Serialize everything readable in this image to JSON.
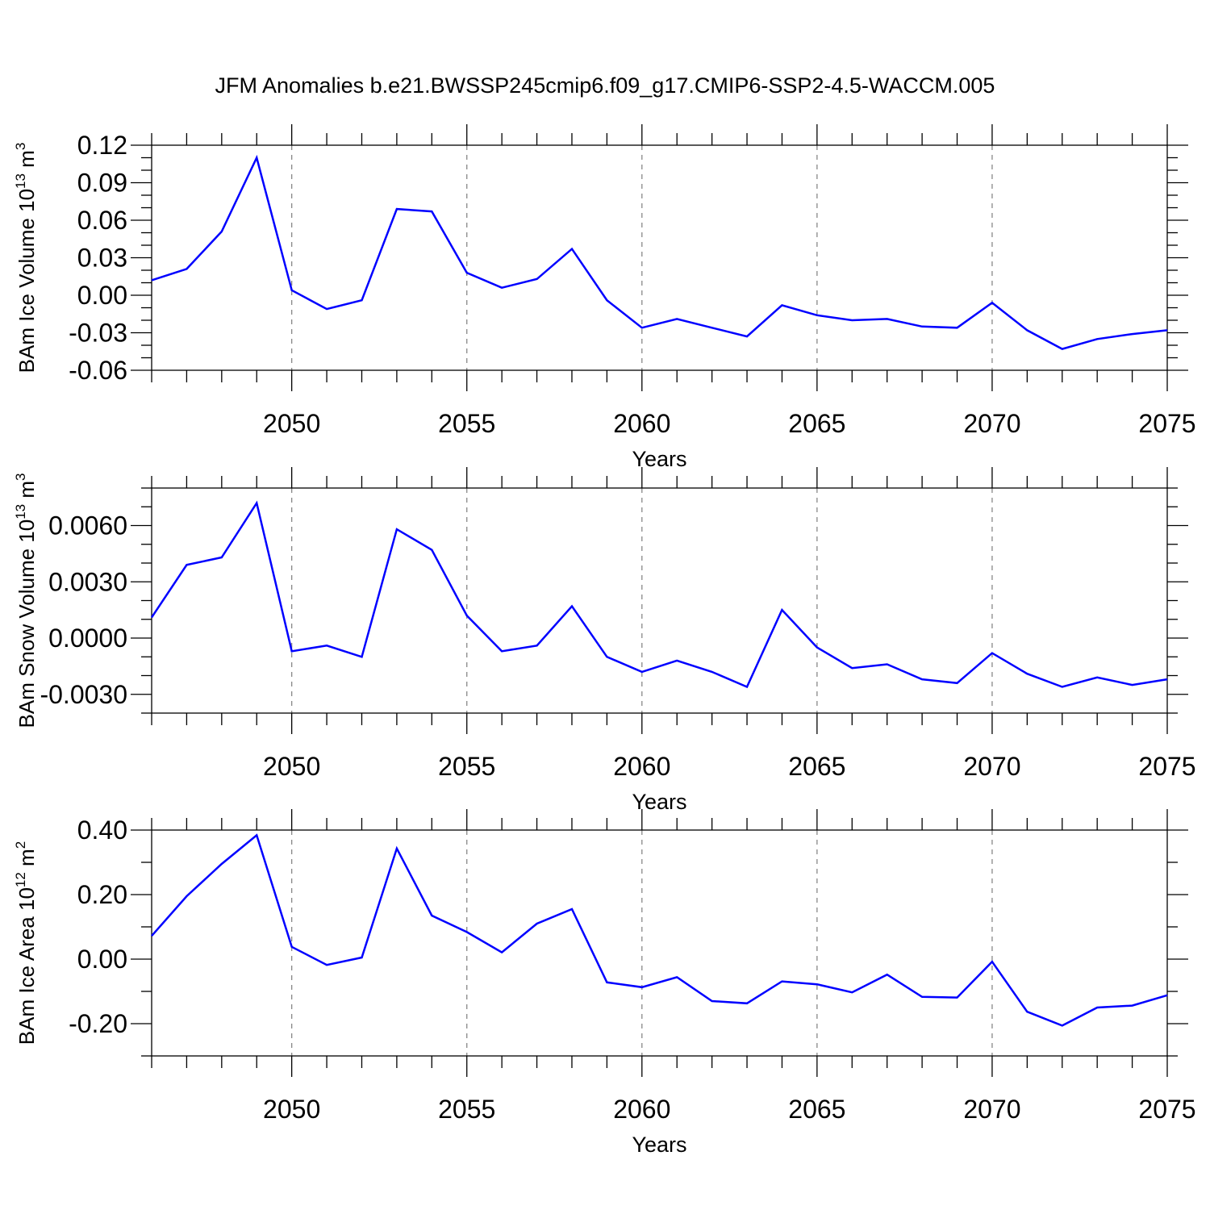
{
  "title": "JFM Anomalies b.e21.BWSSP245cmip6.f09_g17.CMIP6-SSP2-4.5-WACCM.005",
  "chart_data": [
    {
      "type": "line",
      "ylabel": {
        "text": "BAm Ice Volume 10",
        "sup": "13",
        "unit": " m",
        "unit_sup": "3"
      },
      "xlabel": "Years",
      "xlim": [
        2046,
        2075
      ],
      "ylim": [
        -0.06,
        0.12
      ],
      "yticks": [
        "0.12",
        "0.09",
        "0.06",
        "0.03",
        "0.00",
        "-0.03",
        "-0.06"
      ],
      "ytick_values": [
        0.12,
        0.09,
        0.06,
        0.03,
        0.0,
        -0.03,
        -0.06
      ],
      "xticks": [
        "2050",
        "2055",
        "2060",
        "2065",
        "2070",
        "2075"
      ],
      "xtick_values": [
        2050,
        2055,
        2060,
        2065,
        2070,
        2075
      ],
      "grid": "dashed vertical at major x ticks",
      "line_color": "#0000ff",
      "series": [
        {
          "x": [
            2046,
            2047,
            2048,
            2049,
            2050,
            2051,
            2052,
            2053,
            2054,
            2055,
            2056,
            2057,
            2058,
            2059,
            2060,
            2061,
            2062,
            2063,
            2064,
            2065,
            2066,
            2067,
            2068,
            2069,
            2070,
            2071,
            2072,
            2073,
            2074,
            2075
          ],
          "values": [
            0.012,
            0.021,
            0.051,
            0.11,
            0.004,
            -0.011,
            -0.004,
            0.069,
            0.067,
            0.018,
            0.006,
            0.013,
            0.037,
            -0.004,
            -0.026,
            -0.019,
            -0.026,
            -0.033,
            -0.008,
            -0.016,
            -0.02,
            -0.019,
            -0.025,
            -0.026,
            -0.006,
            -0.028,
            -0.043,
            -0.035,
            -0.031,
            -0.028
          ]
        }
      ]
    },
    {
      "type": "line",
      "ylabel": {
        "text": "BAm Snow Volume 10",
        "sup": "13",
        "unit": " m",
        "unit_sup": "3"
      },
      "xlabel": "Years",
      "xlim": [
        2046,
        2075
      ],
      "ylim": [
        -0.004,
        0.008
      ],
      "yticks": [
        "0.0060",
        "0.0030",
        "0.0000",
        "-0.0030"
      ],
      "ytick_values": [
        0.006,
        0.003,
        0.0,
        -0.003
      ],
      "xticks": [
        "2050",
        "2055",
        "2060",
        "2065",
        "2070",
        "2075"
      ],
      "xtick_values": [
        2050,
        2055,
        2060,
        2065,
        2070,
        2075
      ],
      "grid": "dashed vertical at major x ticks",
      "line_color": "#0000ff",
      "series": [
        {
          "x": [
            2046,
            2047,
            2048,
            2049,
            2050,
            2051,
            2052,
            2053,
            2054,
            2055,
            2056,
            2057,
            2058,
            2059,
            2060,
            2061,
            2062,
            2063,
            2064,
            2065,
            2066,
            2067,
            2068,
            2069,
            2070,
            2071,
            2072,
            2073,
            2074,
            2075
          ],
          "values": [
            0.0011,
            0.0039,
            0.0043,
            0.0072,
            -0.0007,
            -0.0004,
            -0.001,
            0.0058,
            0.0047,
            0.0012,
            -0.0007,
            -0.0004,
            0.0017,
            -0.001,
            -0.0018,
            -0.0012,
            -0.0018,
            -0.0026,
            0.0015,
            -0.0005,
            -0.0016,
            -0.0014,
            -0.0022,
            -0.0024,
            -0.0008,
            -0.0019,
            -0.0026,
            -0.0021,
            -0.0025,
            -0.0022
          ]
        }
      ]
    },
    {
      "type": "line",
      "ylabel": {
        "text": "BAm Ice Area 10",
        "sup": "12",
        "unit": " m",
        "unit_sup": "2"
      },
      "xlabel": "Years",
      "xlim": [
        2046,
        2075
      ],
      "ylim": [
        -0.3,
        0.4
      ],
      "yticks": [
        "0.40",
        "0.20",
        "0.00",
        "-0.20"
      ],
      "ytick_values": [
        0.4,
        0.2,
        0.0,
        -0.2
      ],
      "xticks": [
        "2050",
        "2055",
        "2060",
        "2065",
        "2070",
        "2075"
      ],
      "xtick_values": [
        2050,
        2055,
        2060,
        2065,
        2070,
        2075
      ],
      "grid": "dashed vertical at major x ticks",
      "line_color": "#0000ff",
      "series": [
        {
          "x": [
            2046,
            2047,
            2048,
            2049,
            2050,
            2051,
            2052,
            2053,
            2054,
            2055,
            2056,
            2057,
            2058,
            2059,
            2060,
            2061,
            2062,
            2063,
            2064,
            2065,
            2066,
            2067,
            2068,
            2069,
            2070,
            2071,
            2072,
            2073,
            2074,
            2075
          ],
          "values": [
            0.072,
            0.195,
            0.295,
            0.384,
            0.038,
            -0.018,
            0.005,
            0.343,
            0.135,
            0.084,
            0.021,
            0.11,
            0.155,
            -0.072,
            -0.087,
            -0.056,
            -0.13,
            -0.137,
            -0.069,
            -0.078,
            -0.103,
            -0.048,
            -0.117,
            -0.119,
            -0.008,
            -0.163,
            -0.206,
            -0.15,
            -0.144,
            -0.112
          ]
        }
      ]
    }
  ]
}
